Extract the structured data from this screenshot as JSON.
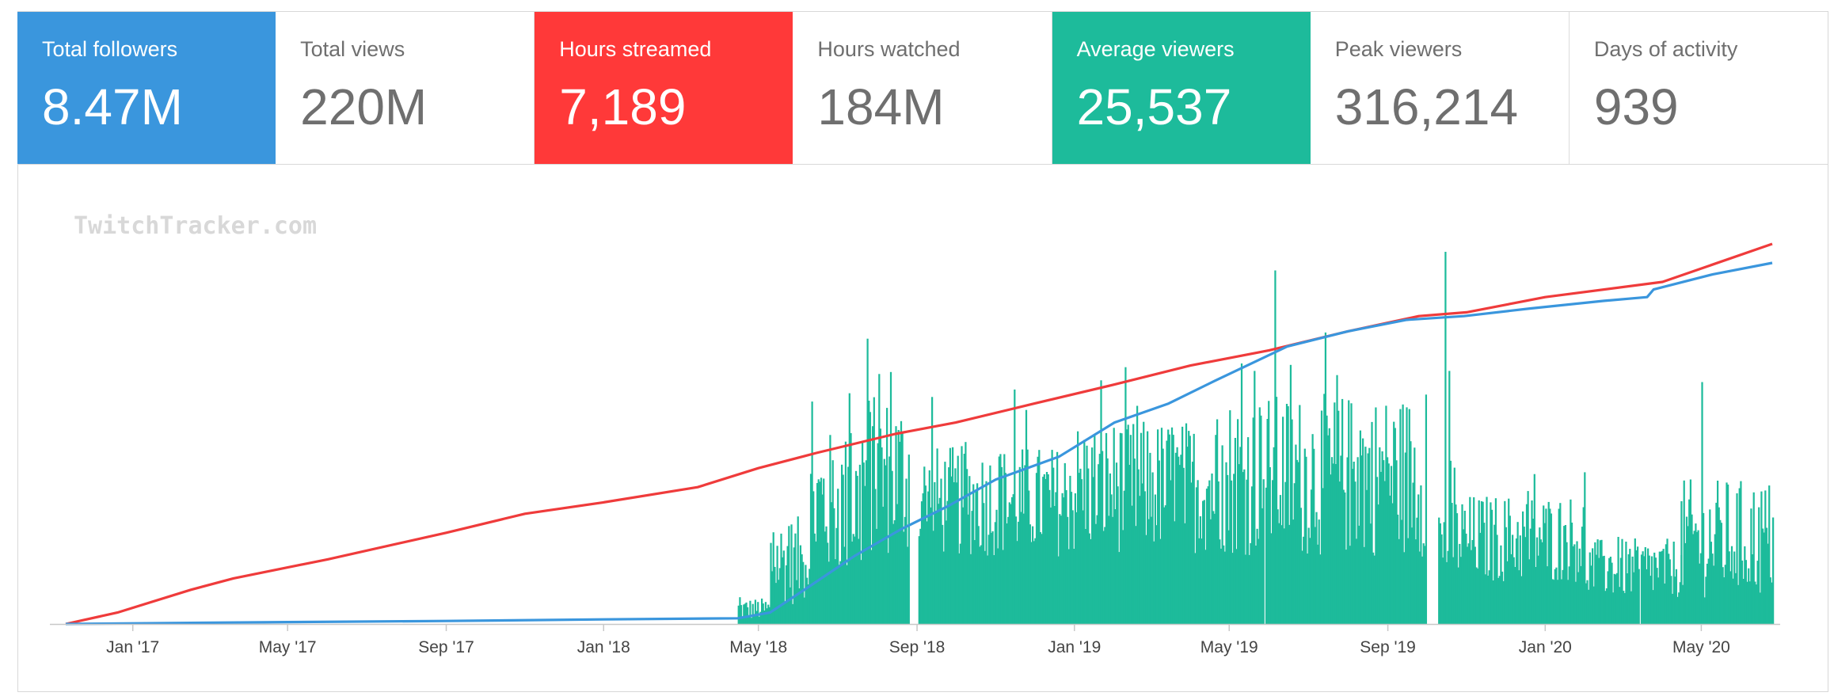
{
  "stats": [
    {
      "label": "Total followers",
      "value": "8.47M",
      "fill": "#3a96dd"
    },
    {
      "label": "Total views",
      "value": "220M",
      "fill": null
    },
    {
      "label": "Hours streamed",
      "value": "7,189",
      "fill": "#ff3939"
    },
    {
      "label": "Hours watched",
      "value": "184M",
      "fill": null
    },
    {
      "label": "Average viewers",
      "value": "25,537",
      "fill": "#1dbb9b"
    },
    {
      "label": "Peak viewers",
      "value": "316,214",
      "fill": null
    },
    {
      "label": "Days of activity",
      "value": "939",
      "fill": null
    }
  ],
  "watermark": "TwitchTracker.com",
  "colors": {
    "followers_line": "#3a96dd",
    "views_line": "#ef3b3b",
    "viewers_bars": "#1dbb9b",
    "axis": "#c8c8c8",
    "tick_text": "#444444",
    "watermark": "#d8d8d8"
  },
  "chart_data": {
    "type": "bar+line",
    "title": "",
    "xlabel": "",
    "ylabel": "",
    "grid": false,
    "legend": "none",
    "x_ticks": [
      "Jan '17",
      "May '17",
      "Sep '17",
      "Jan '18",
      "May '18",
      "Sep '18",
      "Jan '19",
      "May '19",
      "Sep '19",
      "Jan '20",
      "May '20"
    ],
    "x_range": [
      "2016-11-10",
      "2020-06-25"
    ],
    "series": [
      {
        "kind": "line",
        "color": "#ef3b3b",
        "normalized_y_range": [
          0,
          1
        ],
        "points": [
          [
            "2016-11-10",
            0.0
          ],
          [
            "2016-12-20",
            0.03
          ],
          [
            "2017-02-15",
            0.09
          ],
          [
            "2017-03-20",
            0.12
          ],
          [
            "2017-06-01",
            0.17
          ],
          [
            "2017-09-01",
            0.24
          ],
          [
            "2017-11-01",
            0.29
          ],
          [
            "2018-01-01",
            0.32
          ],
          [
            "2018-03-15",
            0.36
          ],
          [
            "2018-05-01",
            0.41
          ],
          [
            "2018-06-15",
            0.45
          ],
          [
            "2018-08-15",
            0.5
          ],
          [
            "2018-10-01",
            0.53
          ],
          [
            "2018-12-01",
            0.58
          ],
          [
            "2019-02-01",
            0.63
          ],
          [
            "2019-04-01",
            0.68
          ],
          [
            "2019-06-01",
            0.72
          ],
          [
            "2019-08-01",
            0.77
          ],
          [
            "2019-09-25",
            0.81
          ],
          [
            "2019-11-01",
            0.82
          ],
          [
            "2020-01-01",
            0.86
          ],
          [
            "2020-04-01",
            0.9
          ],
          [
            "2020-06-25",
            1.0
          ]
        ]
      },
      {
        "kind": "line",
        "color": "#3a96dd",
        "normalized_y_range": [
          0,
          1
        ],
        "points": [
          [
            "2016-11-10",
            0.0
          ],
          [
            "2017-05-01",
            0.005
          ],
          [
            "2017-09-01",
            0.008
          ],
          [
            "2018-01-01",
            0.012
          ],
          [
            "2018-04-15",
            0.015
          ],
          [
            "2018-05-10",
            0.03
          ],
          [
            "2018-06-10",
            0.1
          ],
          [
            "2018-07-15",
            0.18
          ],
          [
            "2018-08-20",
            0.25
          ],
          [
            "2018-09-25",
            0.31
          ],
          [
            "2018-11-01",
            0.38
          ],
          [
            "2018-12-20",
            0.44
          ],
          [
            "2019-02-01",
            0.53
          ],
          [
            "2019-03-15",
            0.58
          ],
          [
            "2019-04-20",
            0.64
          ],
          [
            "2019-06-15",
            0.73
          ],
          [
            "2019-08-01",
            0.77
          ],
          [
            "2019-09-15",
            0.8
          ],
          [
            "2019-10-30",
            0.81
          ],
          [
            "2019-12-20",
            0.83
          ],
          [
            "2020-02-15",
            0.85
          ],
          [
            "2020-03-20",
            0.86
          ],
          [
            "2020-03-25",
            0.88
          ],
          [
            "2020-05-10",
            0.92
          ],
          [
            "2020-06-25",
            0.95
          ]
        ]
      },
      {
        "kind": "bar",
        "color": "#1dbb9b",
        "normalized_y_range": [
          0,
          1
        ],
        "description_of_values": "daily average viewers, normalized to the tallest bar",
        "segments": [
          {
            "from": "2018-04-15",
            "to": "2018-05-10",
            "level": 0.04,
            "var": 0.03
          },
          {
            "from": "2018-05-10",
            "to": "2018-06-10",
            "level": 0.17,
            "var": 0.12
          },
          {
            "from": "2018-06-10",
            "to": "2018-07-20",
            "level": 0.32,
            "var": 0.2
          },
          {
            "from": "2018-07-20",
            "to": "2018-08-25",
            "level": 0.4,
            "var": 0.22
          },
          {
            "from": "2018-09-02",
            "to": "2018-12-31",
            "level": 0.33,
            "var": 0.15
          },
          {
            "from": "2019-01-01",
            "to": "2019-04-30",
            "level": 0.37,
            "var": 0.18
          },
          {
            "from": "2019-05-01",
            "to": "2019-09-30",
            "level": 0.4,
            "var": 0.22
          },
          {
            "from": "2019-10-10",
            "to": "2020-01-31",
            "level": 0.23,
            "var": 0.12
          },
          {
            "from": "2020-02-01",
            "to": "2020-04-15",
            "level": 0.15,
            "var": 0.08
          },
          {
            "from": "2020-04-15",
            "to": "2020-06-25",
            "level": 0.23,
            "var": 0.16
          }
        ],
        "peaks": [
          [
            "2018-07-10",
            0.62
          ],
          [
            "2018-07-25",
            0.6
          ],
          [
            "2018-08-10",
            0.45
          ],
          [
            "2018-09-12",
            0.61
          ],
          [
            "2018-11-15",
            0.63
          ],
          [
            "2019-03-20",
            0.46
          ],
          [
            "2019-04-25",
            0.48
          ],
          [
            "2019-05-10",
            0.7
          ],
          [
            "2019-05-20",
            0.68
          ],
          [
            "2019-05-25",
            0.56
          ],
          [
            "2019-06-05",
            0.95
          ],
          [
            "2019-07-15",
            0.56
          ],
          [
            "2019-08-10",
            0.52
          ],
          [
            "2019-10-15",
            1.0
          ],
          [
            "2019-10-18",
            0.68
          ],
          [
            "2019-10-22",
            0.42
          ],
          [
            "2020-05-01",
            0.65
          ],
          [
            "2020-05-20",
            0.38
          ]
        ],
        "gaps": [
          "2018-08-28",
          "2018-08-29",
          "2018-08-30",
          "2018-08-31",
          "2018-09-01",
          "2019-05-28",
          "2019-10-01",
          "2019-10-02",
          "2019-10-03",
          "2019-10-04",
          "2019-10-05",
          "2019-10-06",
          "2019-10-07",
          "2020-03-14"
        ]
      }
    ]
  }
}
